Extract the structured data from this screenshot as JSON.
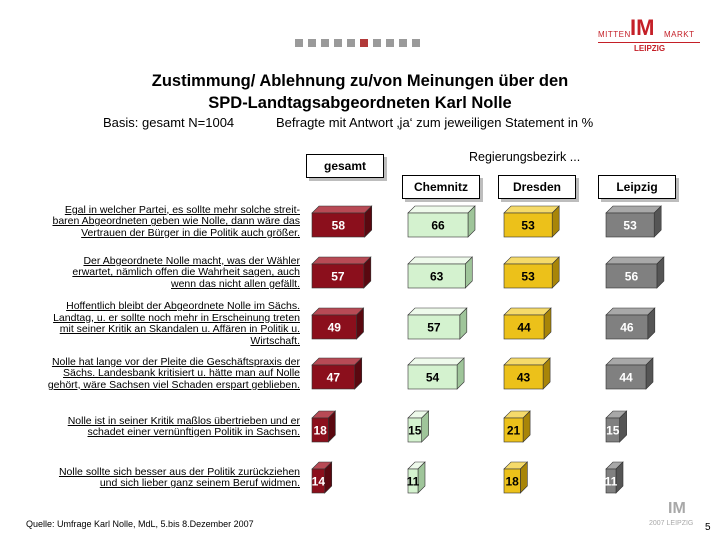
{
  "header": {
    "logo": {
      "left": "MITTEN",
      "main": "IM",
      "right": "MARKT",
      "city": "LEIPZIG"
    },
    "nav_dots_total": 10,
    "nav_dots_active": 6
  },
  "title_line1": "Zustimmung/ Ablehnung zu/von Meinungen über den",
  "title_line2": "SPD-Landtagsabgeordneten Karl Nolle",
  "basis": "Basis: gesamt  N=1004",
  "basis_note": "Befragte mit Antwort ‚ja‘ zum jeweiligen Statement in %",
  "region_header": "Regierungsbezirk ...",
  "footer": {
    "source": "Quelle: Umfrage Karl Nolle, MdL, 5.bis 8.Dezember 2007",
    "page_number": "5",
    "logo_main": "IM",
    "logo_sub": "2007 LEIPZIG"
  },
  "colors": {
    "gesamt": "#8b0f1c",
    "Chemnitz": "#d4f2cf",
    "Dresden": "#ecc11a",
    "Leipzig": "#808080",
    "nav_active": "#b23a3a"
  },
  "chart_data": {
    "type": "bar",
    "title": "Zustimmung/ Ablehnung zu/von Meinungen über den SPD-Landtagsabgeordneten Karl Nolle",
    "categories": [
      "Egal in welcher Partei, es sollte mehr solche streitbaren Abgeordneten geben wie Nolle, dann wäre das Vertrauen der Bürger in die Politik auch größer.",
      "Der Abgeordnete Nolle macht, was der Wähler erwartet, nämlich offen die Wahrheit sagen, auch wenn das nicht allen gefällt.",
      "Hoffentlich bleibt der Abgeordnete Nolle im Sächs. Landtag, u. er sollte noch mehr in Erscheinung treten mit seiner Kritik an Skandalen u. Affären in Politik u. Wirtschaft.",
      "Nolle hat lange vor der Pleite die Geschäftspraxis der Sächs. Landesbank kritisiert u. hätte man auf Nolle gehört, wäre Sachsen viel Schaden erspart geblieben.",
      "Nolle ist in seiner Kritik maßlos übertrieben und er schadet einer vernünftigen Politik in Sachsen.",
      "Nolle sollte sich besser aus der Politik zurückziehen und sich lieber ganz seinem Beruf widmen."
    ],
    "category_lines": [
      [
        "Egal in welcher Partei, es sollte mehr solche streit-",
        "baren Abgeordneten geben wie Nolle, dann wäre das",
        "Vertrauen der Bürger in die Politik auch größer."
      ],
      [
        "Der Abgeordnete Nolle macht, was der Wähler",
        "erwartet, nämlich offen die Wahrheit sagen, auch",
        "wenn das nicht allen gefällt."
      ],
      [
        "Hoffentlich bleibt der Abgeordnete Nolle im Sächs.",
        "Landtag, u. er sollte noch mehr in Erscheinung treten",
        "mit seiner Kritik an Skandalen u. Affären in Politik u.",
        "Wirtschaft."
      ],
      [
        "Nolle hat lange vor der Pleite die Geschäftspraxis der",
        "Sächs. Landesbank kritisiert u. hätte man auf Nolle",
        "gehört, wäre Sachsen viel Schaden erspart geblieben."
      ],
      [
        "Nolle ist in seiner Kritik maßlos übertrieben und er",
        "schadet einer vernünftigen Politik in Sachsen."
      ],
      [
        "Nolle sollte sich besser aus der Politik zurückziehen",
        "und sich lieber ganz seinem Beruf widmen."
      ]
    ],
    "series": [
      {
        "name": "gesamt",
        "values": [
          58,
          57,
          49,
          47,
          18,
          14
        ]
      },
      {
        "name": "Chemnitz",
        "values": [
          66,
          63,
          57,
          54,
          15,
          11
        ]
      },
      {
        "name": "Dresden",
        "values": [
          53,
          53,
          44,
          43,
          21,
          18
        ]
      },
      {
        "name": "Leipzig",
        "values": [
          53,
          56,
          46,
          44,
          15,
          11
        ]
      }
    ],
    "unit": "%"
  }
}
